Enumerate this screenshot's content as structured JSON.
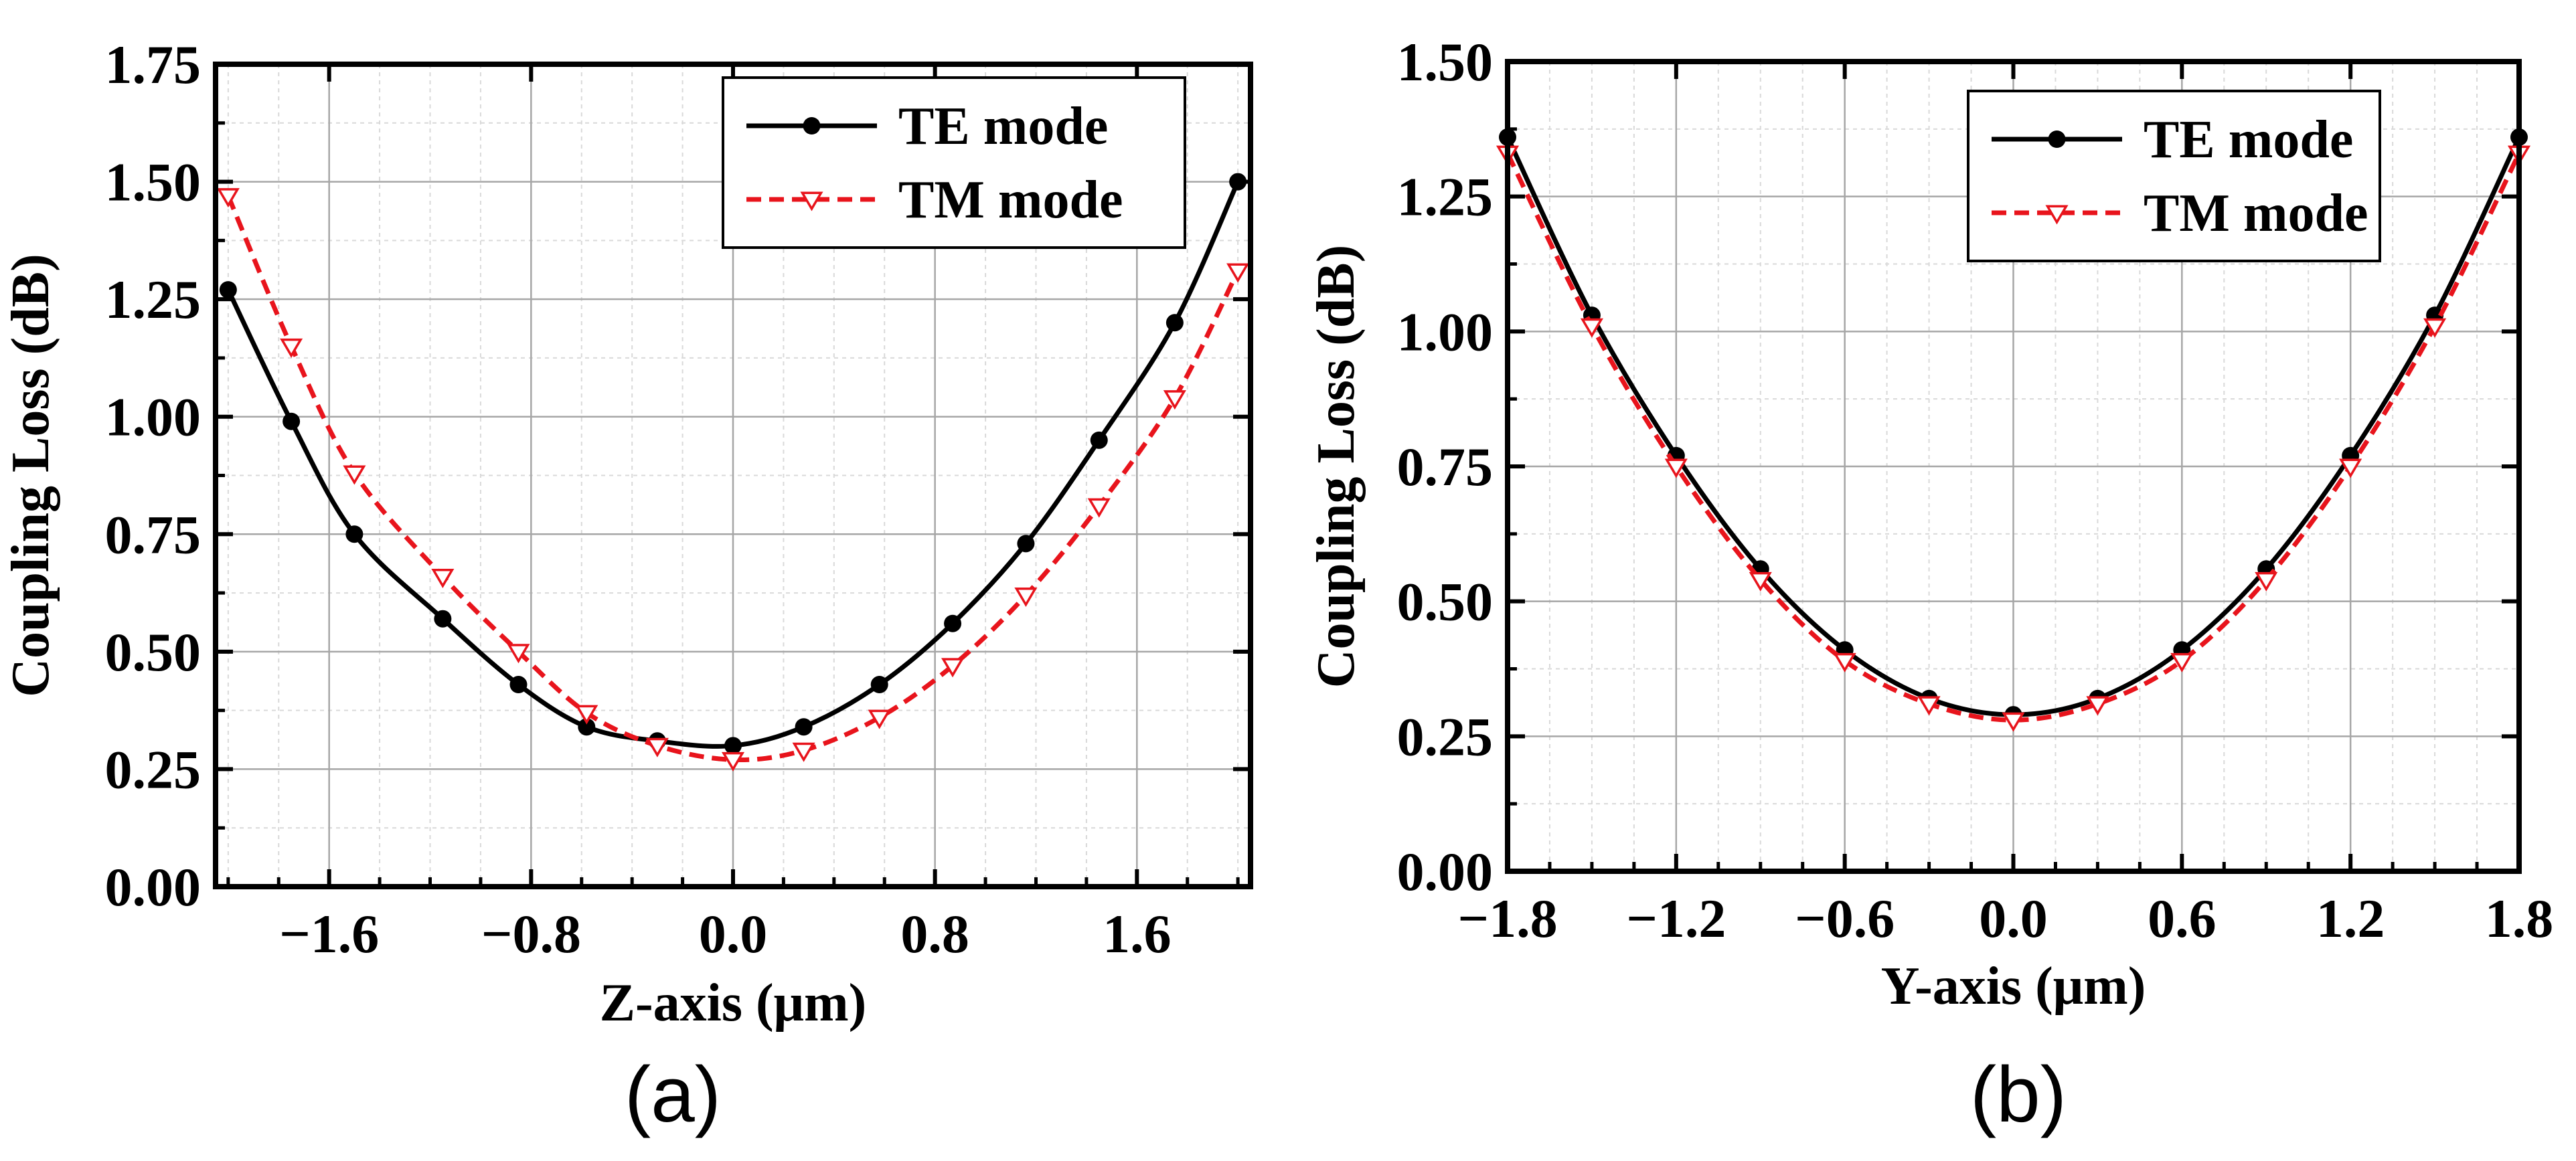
{
  "panels": [
    "(a)",
    "(b)"
  ],
  "chart_data": [
    {
      "type": "line",
      "panel": "(a)",
      "xlabel": "Z-axis (μm)",
      "ylabel": "Coupling Loss (dB)",
      "xlim": [
        -2.05,
        2.05
      ],
      "ylim": [
        0.0,
        1.75
      ],
      "xticks": [
        -1.6,
        -0.8,
        0.0,
        0.8,
        1.6
      ],
      "xtick_labels": [
        "−1.6",
        "−0.8",
        "0.0",
        "0.8",
        "1.6"
      ],
      "yticks": [
        0.0,
        0.25,
        0.5,
        0.75,
        1.0,
        1.25,
        1.5,
        1.75
      ],
      "ytick_labels": [
        "0.00",
        "0.25",
        "0.50",
        "0.75",
        "1.00",
        "1.25",
        "1.50",
        "1.75"
      ],
      "grid": true,
      "legend_position": "top-right",
      "series": [
        {
          "name": "TE mode",
          "color": "#000000",
          "line": "solid",
          "marker": "filled-circle",
          "x": [
            -2.0,
            -1.75,
            -1.5,
            -1.15,
            -0.85,
            -0.58,
            -0.3,
            0.0,
            0.28,
            0.58,
            0.87,
            1.16,
            1.45,
            1.75,
            2.0
          ],
          "y": [
            1.27,
            0.99,
            0.75,
            0.57,
            0.43,
            0.34,
            0.31,
            0.3,
            0.34,
            0.43,
            0.56,
            0.73,
            0.95,
            1.2,
            1.5
          ]
        },
        {
          "name": "TM mode",
          "color": "#e8141c",
          "line": "dashed",
          "marker": "open-triangle-down",
          "x": [
            -2.0,
            -1.75,
            -1.5,
            -1.15,
            -0.85,
            -0.58,
            -0.3,
            0.0,
            0.28,
            0.58,
            0.87,
            1.16,
            1.45,
            1.75,
            2.0
          ],
          "y": [
            1.47,
            1.15,
            0.88,
            0.66,
            0.5,
            0.37,
            0.3,
            0.27,
            0.29,
            0.36,
            0.47,
            0.62,
            0.81,
            1.04,
            1.31
          ]
        }
      ]
    },
    {
      "type": "line",
      "panel": "(b)",
      "xlabel": "Y-axis (μm)",
      "ylabel": "Coupling Loss (dB)",
      "xlim": [
        -1.8,
        1.8
      ],
      "ylim": [
        0.0,
        1.5
      ],
      "xticks": [
        -1.8,
        -1.2,
        -0.6,
        0.0,
        0.6,
        1.2,
        1.8
      ],
      "xtick_labels": [
        "−1.8",
        "−1.2",
        "−0.6",
        "0.0",
        "0.6",
        "1.2",
        "1.8"
      ],
      "yticks": [
        0.0,
        0.25,
        0.5,
        0.75,
        1.0,
        1.25,
        1.5
      ],
      "ytick_labels": [
        "0.00",
        "0.25",
        "0.50",
        "0.75",
        "1.00",
        "1.25",
        "1.50"
      ],
      "grid": true,
      "legend_position": "top-right",
      "series": [
        {
          "name": "TE mode",
          "color": "#000000",
          "line": "solid",
          "marker": "filled-circle",
          "x": [
            -1.8,
            -1.5,
            -1.2,
            -0.9,
            -0.6,
            -0.3,
            0.0,
            0.3,
            0.6,
            0.9,
            1.2,
            1.5,
            1.8
          ],
          "y": [
            1.36,
            1.03,
            0.77,
            0.56,
            0.41,
            0.32,
            0.29,
            0.32,
            0.41,
            0.56,
            0.77,
            1.03,
            1.36
          ]
        },
        {
          "name": "TM mode",
          "color": "#e8141c",
          "line": "dashed",
          "marker": "open-triangle-down",
          "x": [
            -1.8,
            -1.5,
            -1.2,
            -0.9,
            -0.6,
            -0.3,
            0.0,
            0.3,
            0.6,
            0.9,
            1.2,
            1.5,
            1.8
          ],
          "y": [
            1.33,
            1.01,
            0.75,
            0.54,
            0.39,
            0.31,
            0.28,
            0.31,
            0.39,
            0.54,
            0.75,
            1.01,
            1.33
          ]
        }
      ]
    }
  ]
}
